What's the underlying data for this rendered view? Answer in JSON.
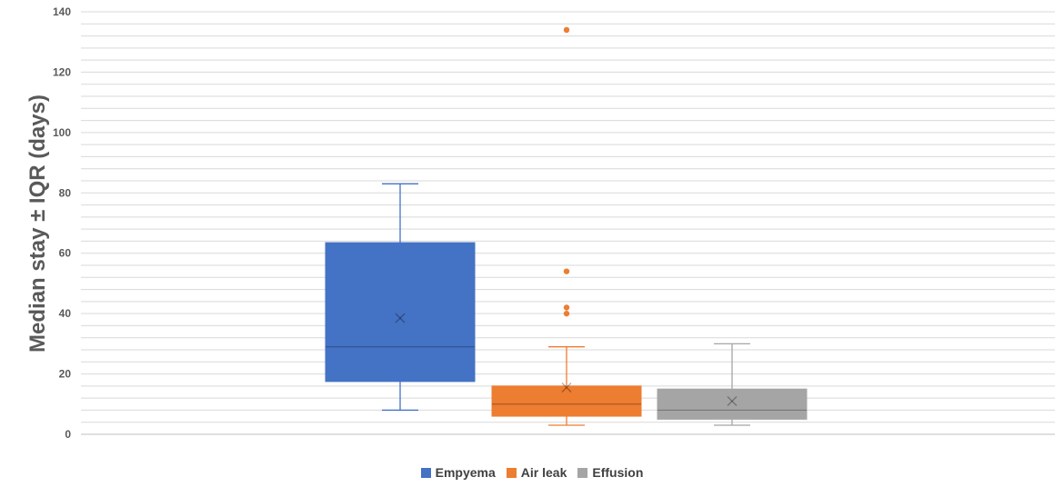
{
  "chart_data": {
    "type": "box",
    "title": "",
    "xlabel": "",
    "ylabel": "Median stay ± IQR (days)",
    "ylim": [
      0,
      140
    ],
    "y_ticks": [
      0,
      20,
      40,
      60,
      80,
      100,
      120,
      140
    ],
    "minor_gridline_step": 4,
    "grid": true,
    "legend_position": "bottom",
    "series": [
      {
        "name": "Empyema",
        "color": "#4472C4",
        "min": 8,
        "q1": 17.5,
        "median": 29,
        "q3": 63.5,
        "max": 83,
        "mean": 38.5,
        "outliers": []
      },
      {
        "name": "Air leak",
        "color": "#ED7D31",
        "min": 3,
        "q1": 6,
        "median": 10,
        "q3": 16,
        "max": 29,
        "mean": 15.5,
        "outliers": [
          40,
          42,
          54,
          134
        ]
      },
      {
        "name": "Effusion",
        "color": "#A5A5A5",
        "min": 3,
        "q1": 5,
        "median": 8,
        "q3": 15,
        "max": 30,
        "mean": 11,
        "outliers": []
      }
    ]
  }
}
